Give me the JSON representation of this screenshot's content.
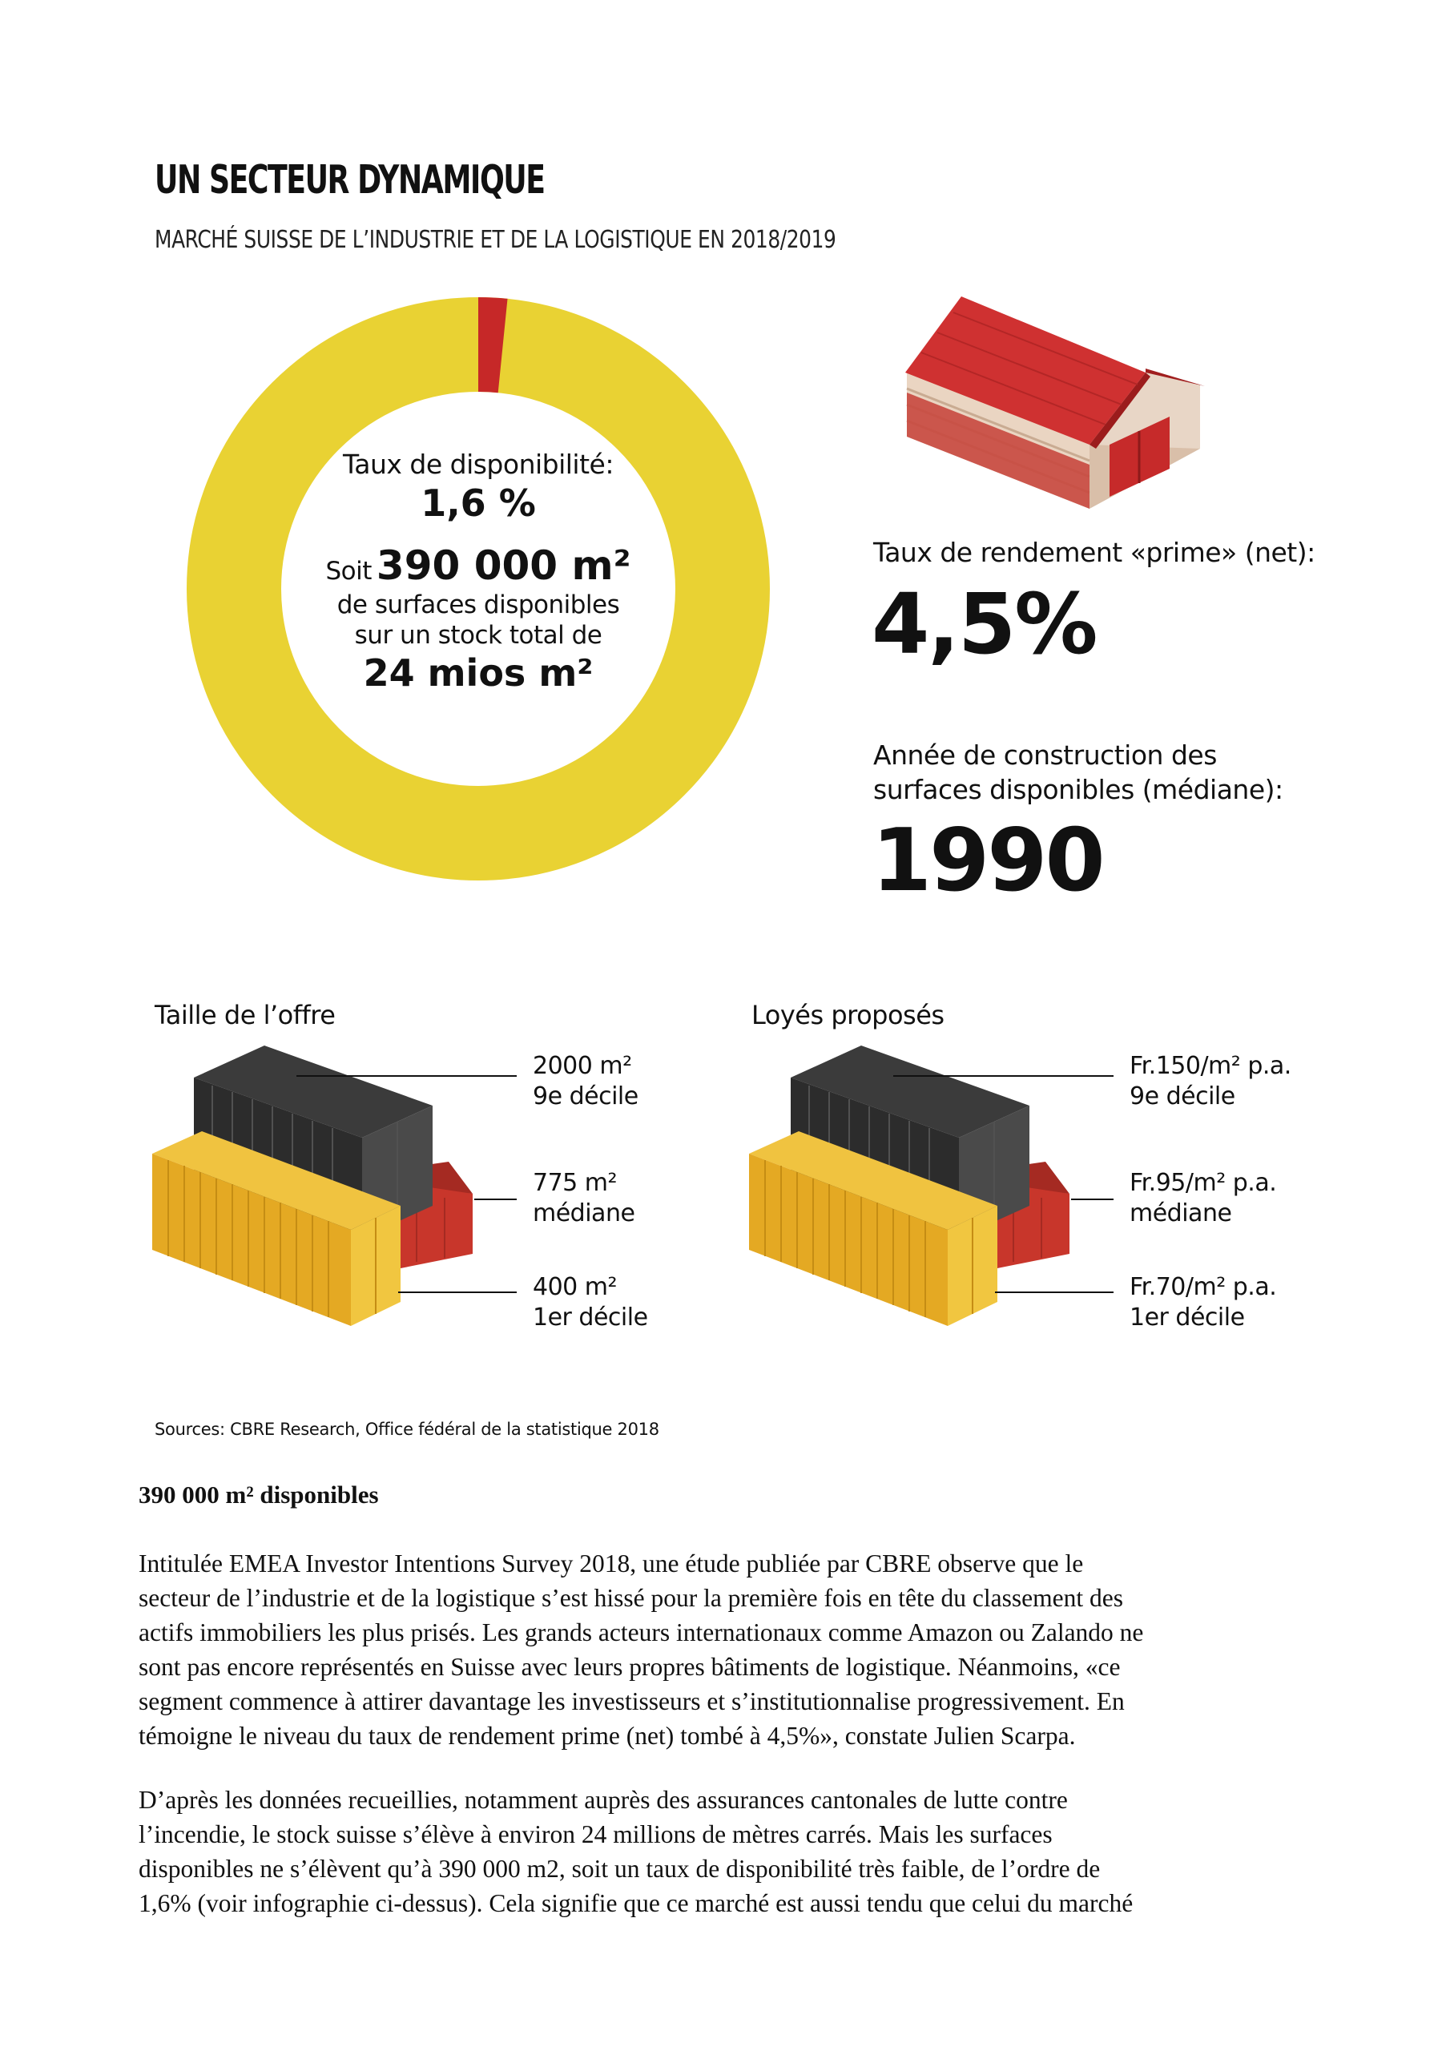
{
  "infographic": {
    "title": "UN SECTEUR DYNAMIQUE",
    "subtitle": "MARCHÉ SUISSE DE L’INDUSTRIE ET DE LA LOGISTIQUE EN 2018/2019",
    "donut": {
      "rate_label": "Taux de disponibilité:",
      "rate_value": "1,6 %",
      "soit": "Soit",
      "area_value": "390 000 m²",
      "line1": "de surfaces disponibles",
      "line2": "sur un stock total de",
      "total_value": "24 mios m²",
      "available_fraction": 0.016,
      "colors": {
        "available": "#c62828",
        "rest": "#e9d233"
      }
    },
    "yield": {
      "label": "Taux de rendement «prime» (net):",
      "value": "4,5%"
    },
    "construction": {
      "label_line1": "Année de construction des",
      "label_line2": "surfaces disponibles (médiane):",
      "value": "1990"
    },
    "offer_size": {
      "title": "Taille de l’offre",
      "items": [
        {
          "value": "2000 m²",
          "label": "9e décile"
        },
        {
          "value": "775 m²",
          "label": "médiane"
        },
        {
          "value": "400 m²",
          "label": "1er décile"
        }
      ]
    },
    "rents": {
      "title": "Loyés proposés",
      "items": [
        {
          "value": "Fr.150/m² p.a.",
          "label": "9e décile"
        },
        {
          "value": "Fr.95/m² p.a.",
          "label": "médiane"
        },
        {
          "value": "Fr.70/m² p.a.",
          "label": "1er décile"
        }
      ]
    },
    "sources": "Sources: CBRE Research, Office fédéral de la statistique 2018"
  },
  "article": {
    "heading": "390 000 m² disponibles",
    "p1": [
      "Intitulée EMEA Investor Intentions Survey 2018, une étude publiée par CBRE observe que le",
      "secteur de l’industrie et de la logistique s’est hissé pour la première fois en tête du classement des",
      "actifs immobiliers les plus prisés. Les grands acteurs internationaux comme Amazon ou Zalando ne",
      "sont pas encore représentés en Suisse avec leurs propres bâtiments de logistique. Néanmoins, «ce",
      "segment commence à attirer davantage les investisseurs et s’institutionnalise progressivement. En",
      "témoigne le niveau du taux de rendement prime (net) tombé à 4,5%», constate Julien Scarpa."
    ],
    "p2": [
      "D’après les données recueillies, notamment auprès des assurances cantonales de lutte contre",
      "l’incendie, le stock suisse s’élève à environ 24 millions de mètres carrés. Mais les surfaces",
      "disponibles ne s’élèvent qu’à 390 000 m2, soit un taux de disponibilité très faible, de l’ordre de",
      "1,6% (voir infographie ci-dessus). Cela signifie que ce marché est aussi tendu que celui du marché"
    ]
  }
}
